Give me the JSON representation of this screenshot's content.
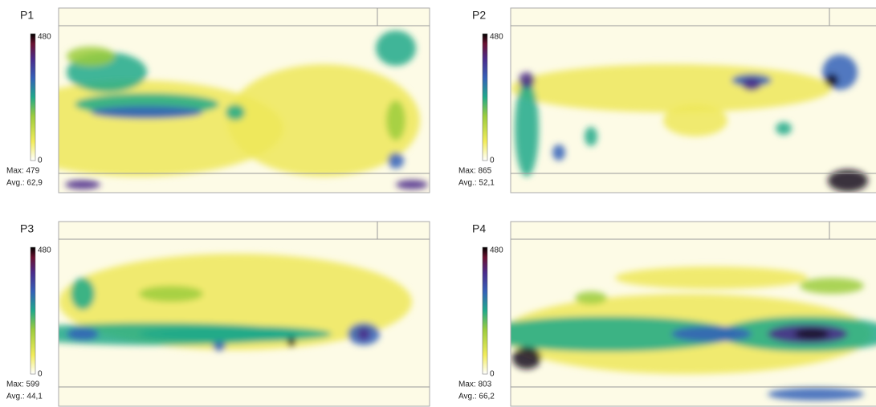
{
  "panels": [
    {
      "label": "P1",
      "scale_max": "480",
      "scale_min": "0",
      "max": "Max: 479",
      "avg": "Avg.: 62,9"
    },
    {
      "label": "P2",
      "scale_max": "480",
      "scale_min": "0",
      "max": "Max: 865",
      "avg": "Avg.: 52,1"
    },
    {
      "label": "P3",
      "scale_max": "480",
      "scale_min": "0",
      "max": "Max: 599",
      "avg": "Avg.: 44,1"
    },
    {
      "label": "P4",
      "scale_max": "480",
      "scale_min": "0",
      "max": "Max: 803",
      "avg": "Avg.: 66,2"
    }
  ]
}
